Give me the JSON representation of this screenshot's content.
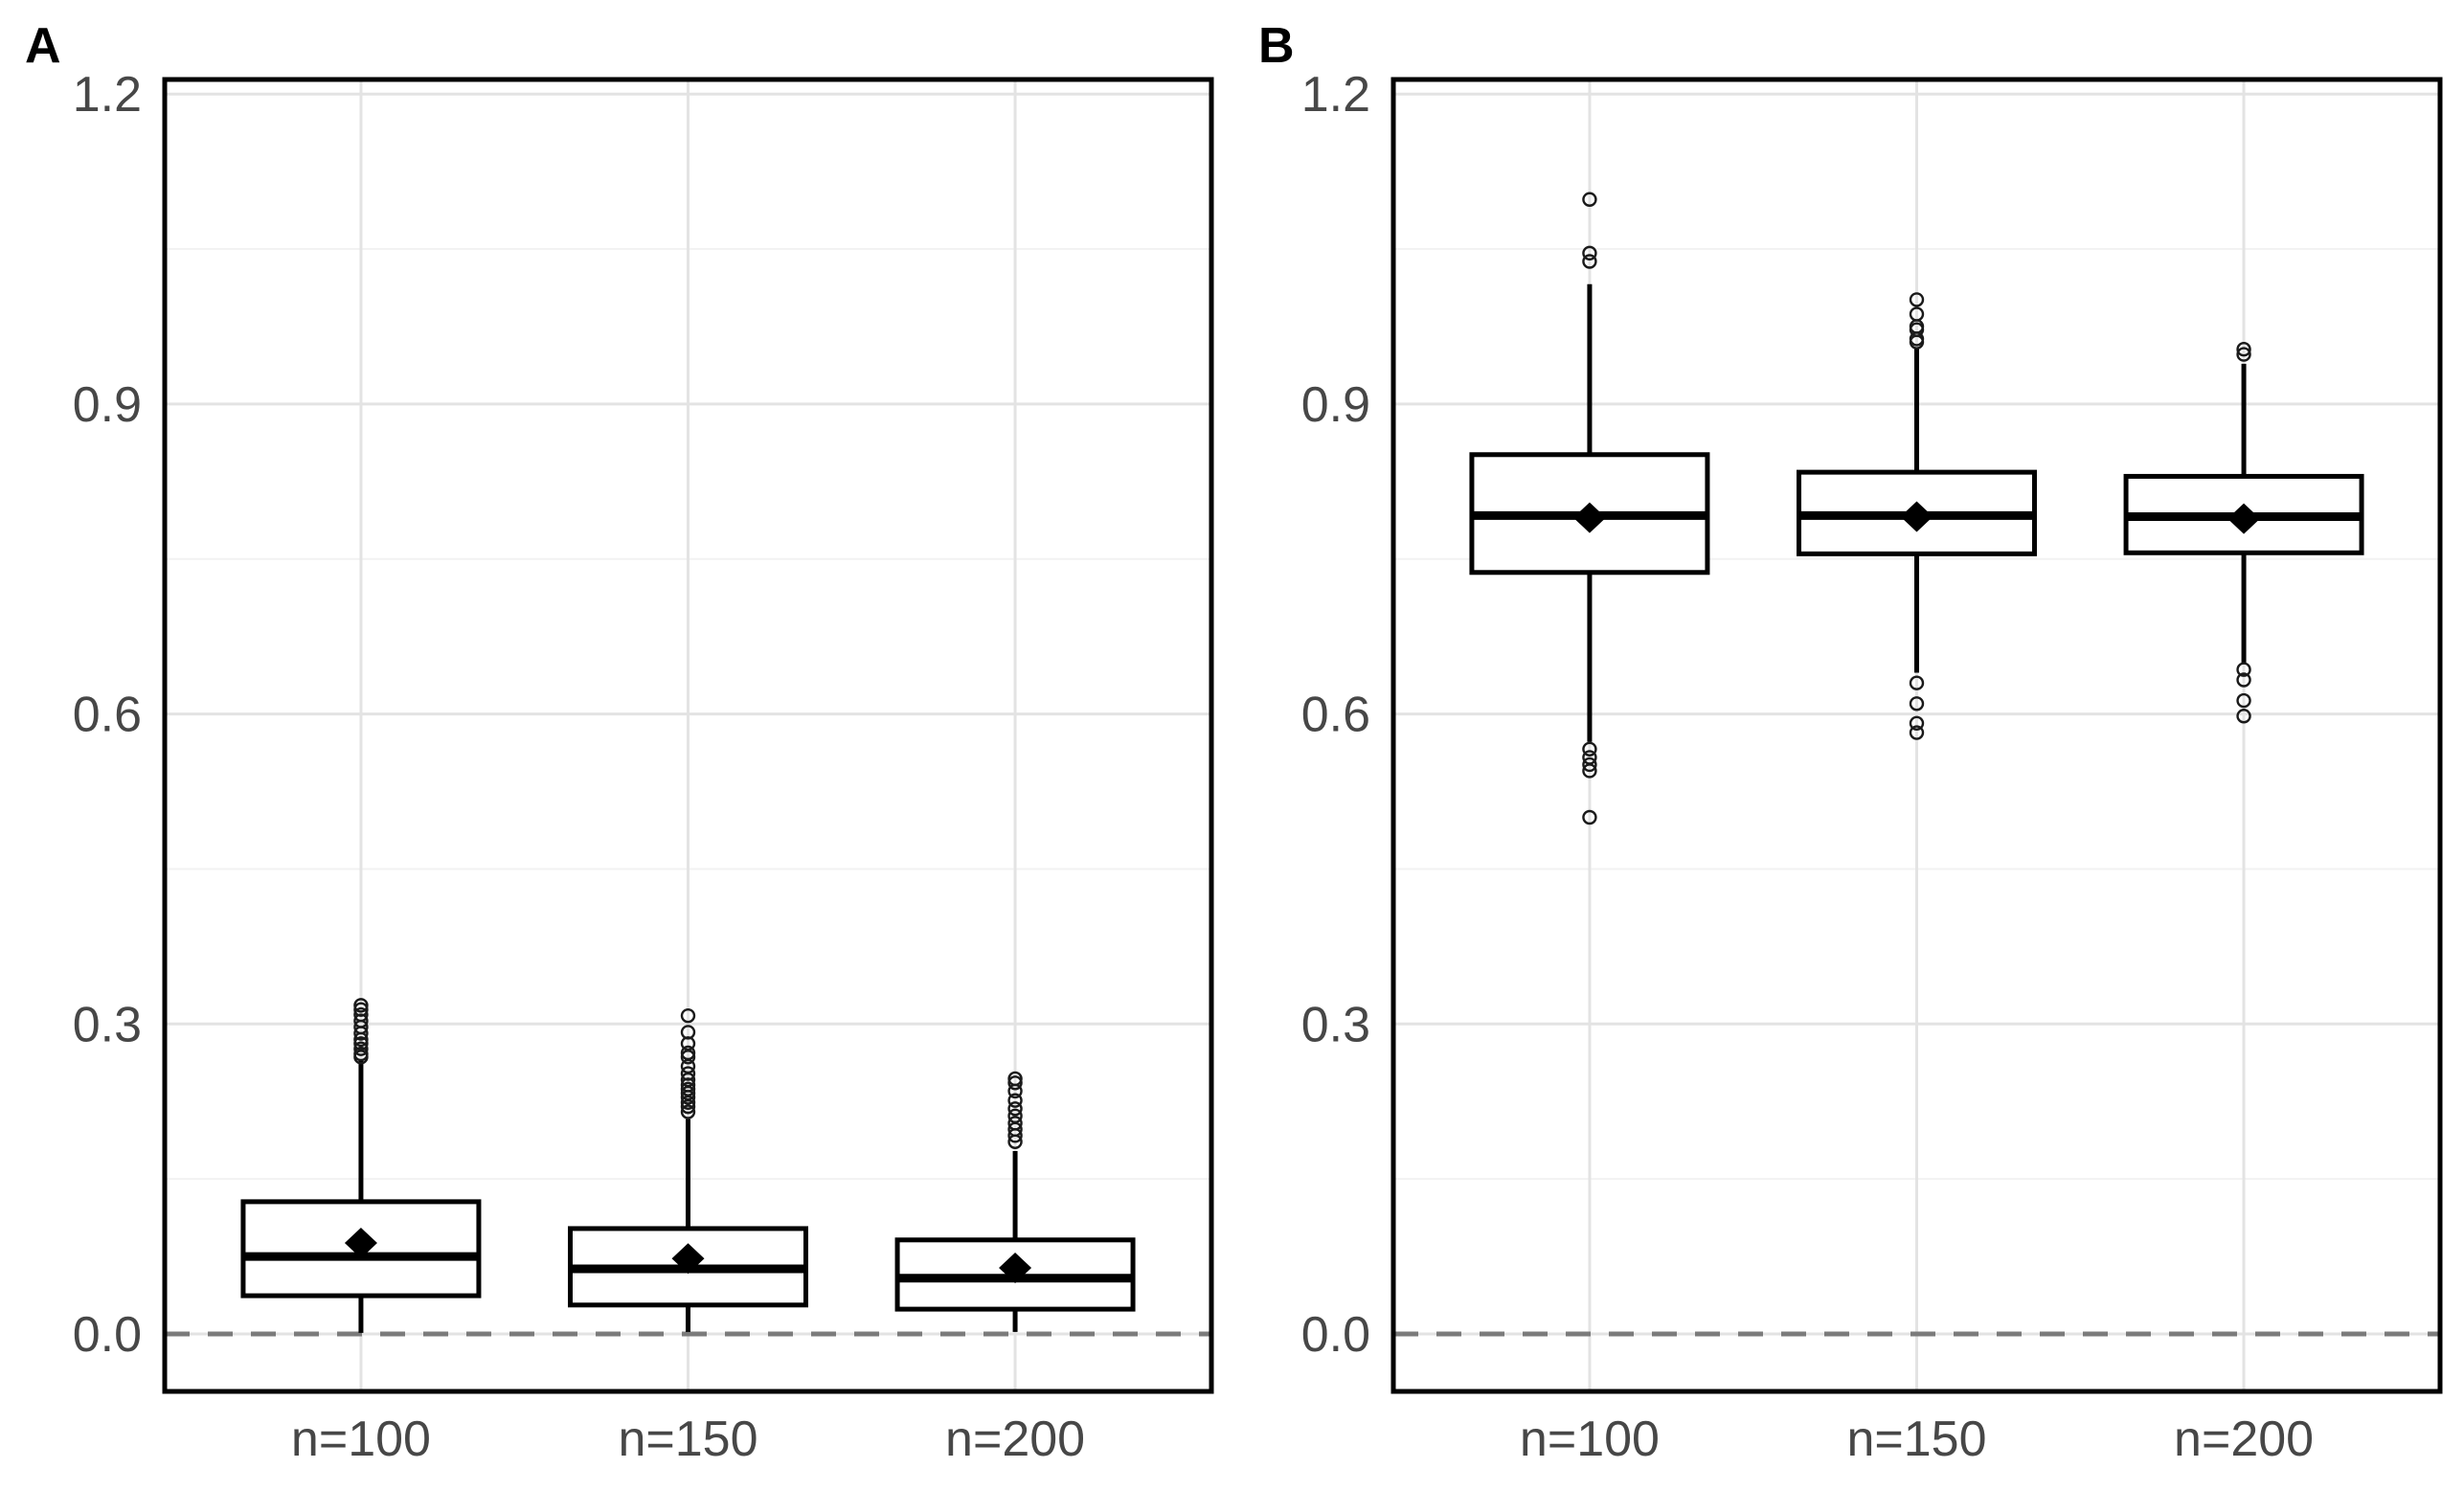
{
  "figure": {
    "background": "#FFFFFF"
  },
  "chart_data": {
    "type": "boxplot",
    "title": "",
    "xlabel": "",
    "ylabel": "",
    "categories": [
      "n=100",
      "n=150",
      "n=200"
    ],
    "y_axis": {
      "tick_values": [
        0.0,
        0.3,
        0.6,
        0.9,
        1.2
      ],
      "tick_labels": [
        "0.0",
        "0.3",
        "0.6",
        "0.9",
        "1.2"
      ],
      "range": [
        -0.056,
        1.214
      ],
      "minor_gridlines": [
        0.15,
        0.45,
        0.75,
        1.05
      ],
      "grid": true
    },
    "reference_line": {
      "value": 0.0,
      "style": "dashed"
    },
    "mean_marker": "diamond",
    "legend": "none",
    "panels": [
      {
        "label": "A",
        "boxes": [
          {
            "category": "n=100",
            "whisker_low": 0.001,
            "q1": 0.037,
            "median": 0.075,
            "q3": 0.128,
            "whisker_high": 0.265,
            "mean": 0.088,
            "outliers": [
              0.268,
              0.271,
              0.276,
              0.281,
              0.285,
              0.291,
              0.297,
              0.303,
              0.309,
              0.314,
              0.318
            ]
          },
          {
            "category": "n=150",
            "whisker_low": 0.002,
            "q1": 0.028,
            "median": 0.063,
            "q3": 0.102,
            "whisker_high": 0.208,
            "mean": 0.073,
            "outliers": [
              0.215,
              0.22,
              0.224,
              0.229,
              0.233,
              0.237,
              0.241,
              0.246,
              0.252,
              0.259,
              0.268,
              0.272,
              0.281,
              0.292,
              0.308
            ]
          },
          {
            "category": "n=200",
            "whisker_low": 0.002,
            "q1": 0.024,
            "median": 0.054,
            "q3": 0.091,
            "whisker_high": 0.177,
            "mean": 0.064,
            "outliers": [
              0.186,
              0.192,
              0.198,
              0.204,
              0.211,
              0.218,
              0.226,
              0.235,
              0.243,
              0.247
            ]
          }
        ]
      },
      {
        "label": "B",
        "boxes": [
          {
            "category": "n=100",
            "whisker_low": 0.573,
            "q1": 0.737,
            "median": 0.792,
            "q3": 0.851,
            "whisker_high": 1.016,
            "mean": 0.79,
            "outliers": [
              0.5,
              0.545,
              0.551,
              0.558,
              0.566,
              1.038,
              1.046,
              1.098
            ]
          },
          {
            "category": "n=150",
            "whisker_low": 0.64,
            "q1": 0.755,
            "median": 0.792,
            "q3": 0.834,
            "whisker_high": 0.954,
            "mean": 0.791,
            "outliers": [
              0.582,
              0.591,
              0.61,
              0.63,
              0.96,
              0.963,
              0.972,
              0.975,
              0.987,
              1.001
            ]
          },
          {
            "category": "n=200",
            "whisker_low": 0.649,
            "q1": 0.756,
            "median": 0.791,
            "q3": 0.83,
            "whisker_high": 0.939,
            "mean": 0.789,
            "outliers": [
              0.598,
              0.613,
              0.633,
              0.643,
              0.948,
              0.953
            ]
          }
        ]
      }
    ],
    "styles": {
      "box_stroke": "#000000",
      "box_fill": "#FFFFFF",
      "median_color": "#000000",
      "mean_color": "#000000",
      "outlier_color": "#1A1A1A",
      "grid_major_color": "#E3E3E3",
      "grid_minor_color": "#F2F2F2",
      "dashed_line_color": "#7B7B7B",
      "axis_text_color": "#474747",
      "panel_border_color": "#000000",
      "background": "#FFFFFF"
    }
  }
}
